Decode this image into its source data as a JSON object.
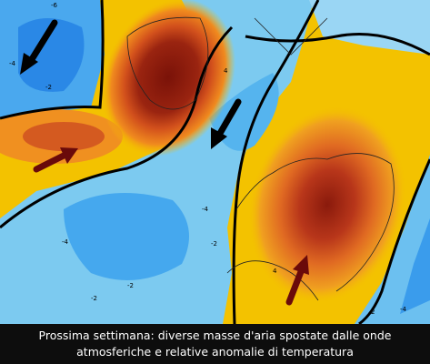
{
  "map": {
    "labels": [
      "-6",
      "-4",
      "-2",
      "4",
      "-4",
      "-2",
      "-4",
      "-2",
      "2",
      "-4",
      "-2",
      "4"
    ]
  },
  "caption": {
    "lines": [
      "Prossima settimana: diverse masse d'aria spostate dalle onde",
      "atmosferiche e relative anomalie di temperatura"
    ]
  }
}
